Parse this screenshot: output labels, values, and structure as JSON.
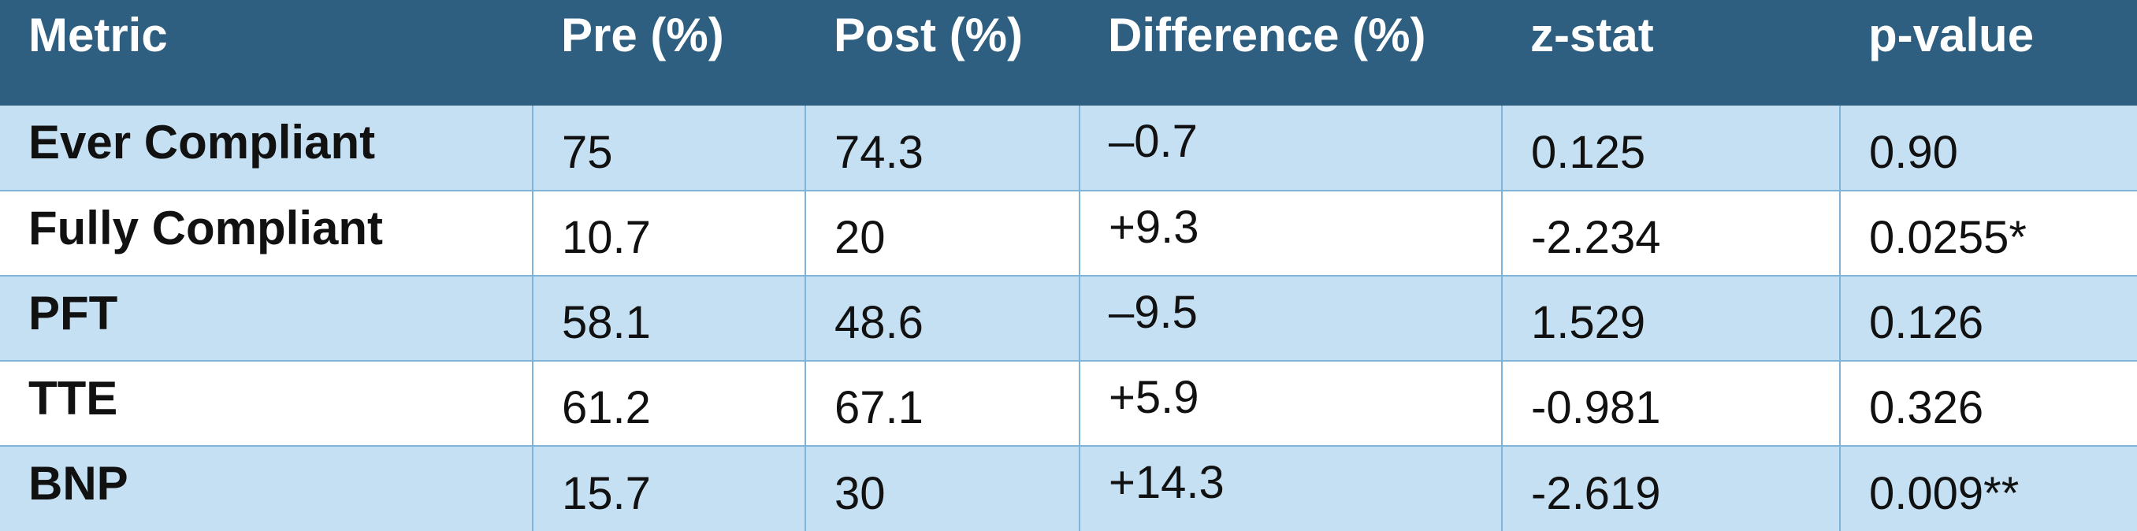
{
  "table": {
    "headers": [
      "Metric",
      "Pre (%)",
      "Post (%)",
      "Difference (%)",
      "z-stat",
      "p-value"
    ],
    "rows": [
      [
        "Ever Compliant",
        "75",
        "74.3",
        "–0.7",
        "0.125",
        "0.90"
      ],
      [
        "Fully Compliant",
        "10.7",
        "20",
        "+9.3",
        "-2.234",
        "0.0255*"
      ],
      [
        "PFT",
        "58.1",
        "48.6",
        "–9.5",
        "1.529",
        "0.126"
      ],
      [
        "TTE",
        "61.2",
        "67.1",
        "+5.9",
        "-0.981",
        "0.326"
      ],
      [
        "BNP",
        "15.7",
        "30",
        "+14.3",
        "-2.619",
        "0.009**"
      ]
    ]
  },
  "colors": {
    "header_bg": "#2e5f80",
    "header_text": "#ffffff",
    "row_alt_bg": "#c5e0f2",
    "row_bg": "#ffffff",
    "border": "#7fb4d8"
  }
}
